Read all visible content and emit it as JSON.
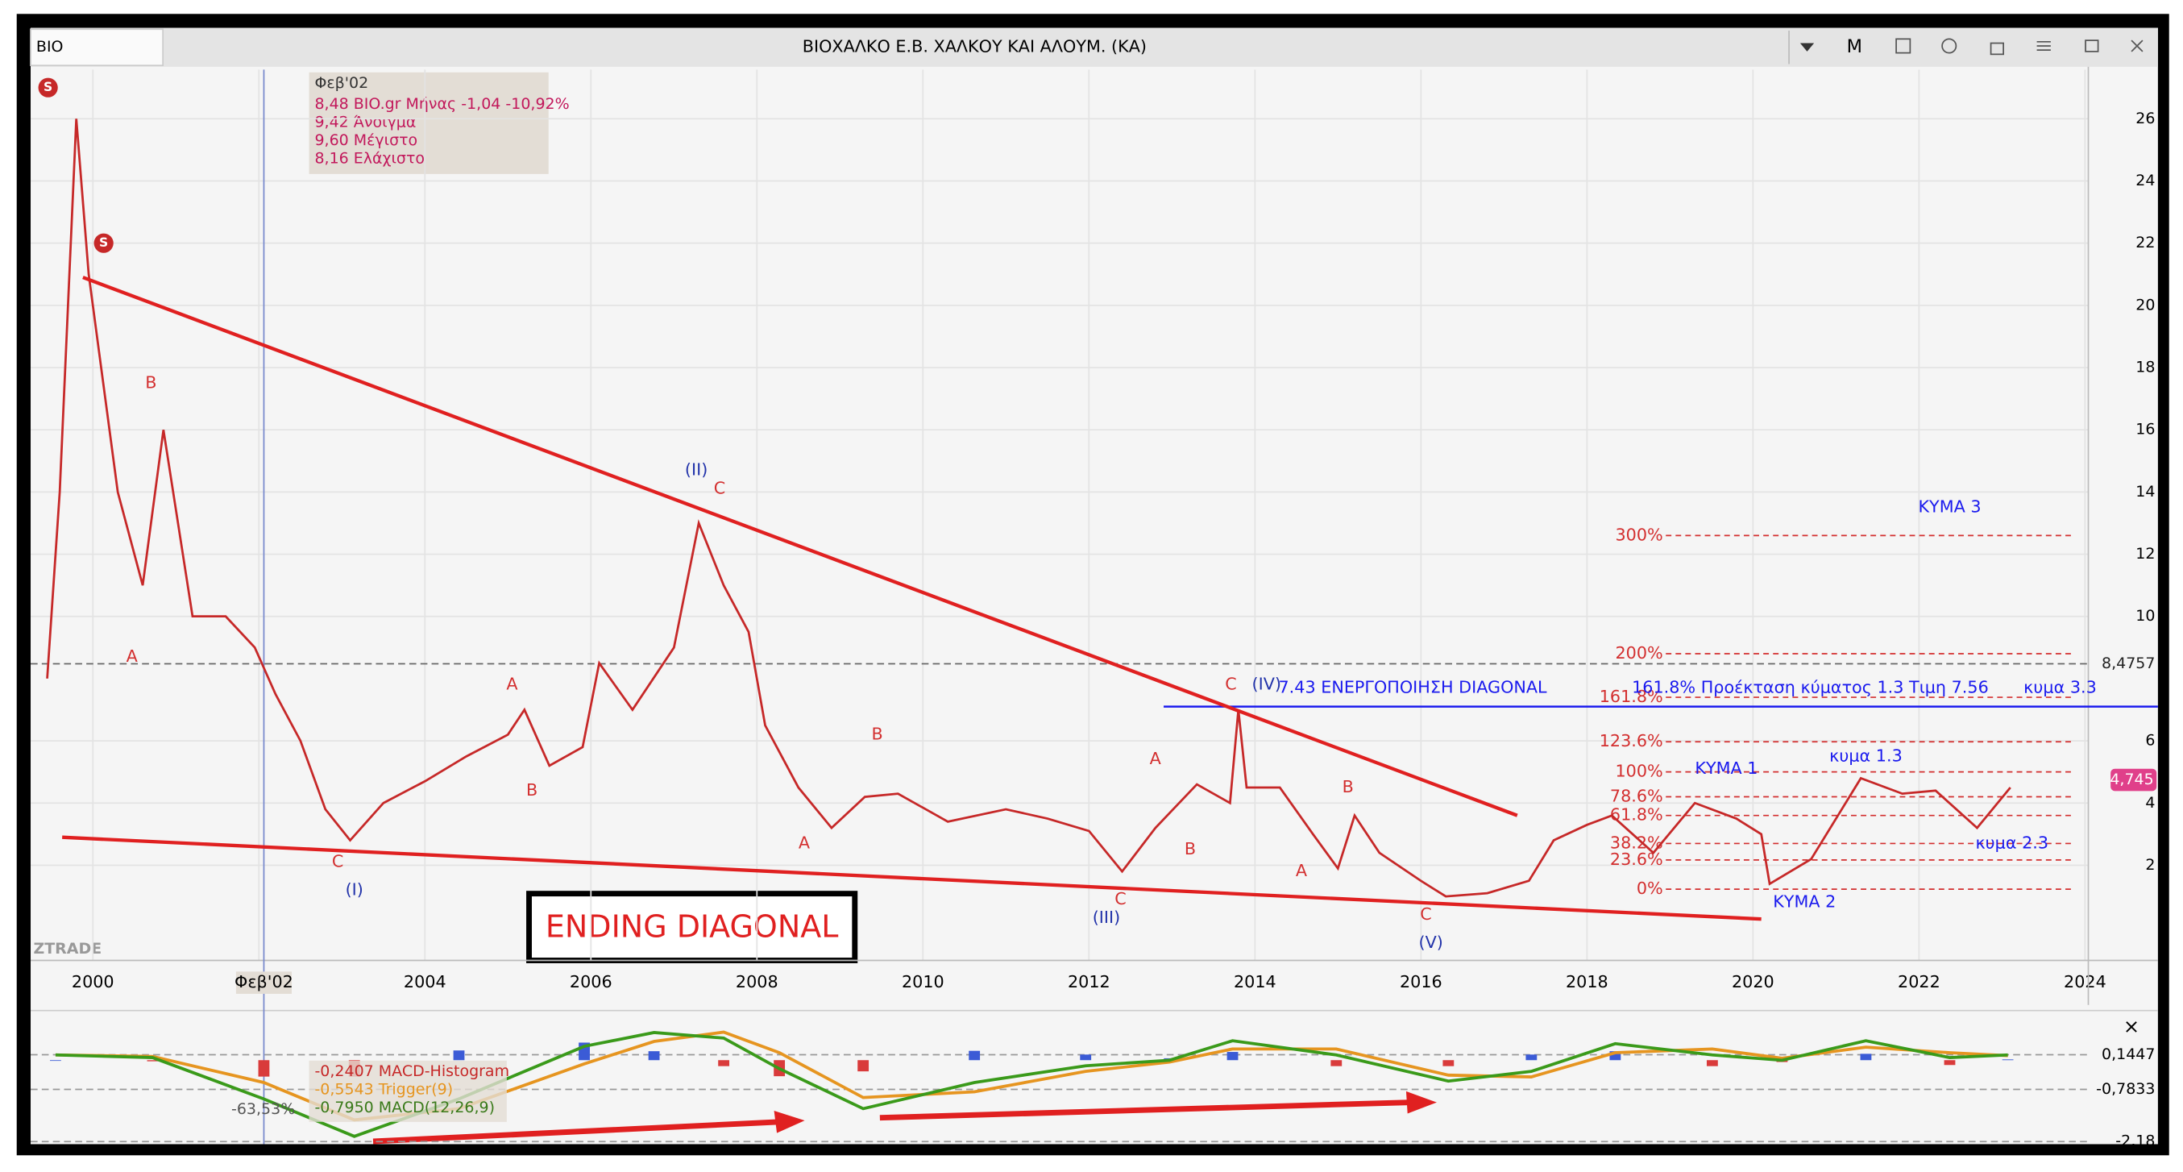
{
  "toolbar": {
    "symbol": "BIO",
    "title": "ΒΙΟΧΑΛΚΟ Ε.Β. ΧΑΛΚΟΥ ΚΑΙ ΑΛΟΥΜ. (ΚΑ)",
    "period_button": "M"
  },
  "info_box": [
    "Φεβ'02",
    "8,48 BIO.gr Μήνας -1,04 -10,92%",
    "9,42 Άνοιγμα",
    "9,60 Μέγιστο",
    "8,16 Ελάχιστο"
  ],
  "watermark": "ZTRADE",
  "box_label": "ENDING DIAGONAL",
  "close_button": "×",
  "chart_data": [
    {
      "type": "line",
      "x": [
        1999.45,
        1999.6,
        1999.8,
        1999.95,
        2000.3,
        2000.6,
        2000.85,
        2001.2,
        2001.6,
        2001.95,
        2002.2,
        2002.5,
        2002.8,
        2003.1,
        2003.5,
        2004,
        2004.5,
        2005,
        2005.2,
        2005.5,
        2005.9,
        2006.1,
        2006.5,
        2007,
        2007.3,
        2007.6,
        2007.9,
        2008.1,
        2008.5,
        2008.9,
        2009.3,
        2009.7,
        2010.3,
        2011,
        2011.5,
        2012,
        2012.4,
        2012.8,
        2013.3,
        2013.7,
        2013.8,
        2013.9,
        2014.3,
        2014.7,
        2015,
        2015.2,
        2015.5,
        2016,
        2016.3,
        2016.8,
        2017.3,
        2017.6,
        2018,
        2018.3,
        2018.8,
        2019.3,
        2019.8,
        2020.1,
        2020.2,
        2020.7,
        2021,
        2021.3,
        2021.8,
        2022.2,
        2022.7,
        2023.1
      ],
      "series": [
        {
          "color": "#c62828",
          "values": [
            8,
            14,
            26,
            21,
            14,
            11,
            16,
            10,
            10,
            9,
            7.5,
            6,
            3.8,
            2.8,
            4,
            4.7,
            5.5,
            6.2,
            7,
            5.2,
            5.8,
            8.5,
            7,
            9,
            13,
            11,
            9.5,
            6.5,
            4.5,
            3.2,
            4.2,
            4.3,
            3.4,
            3.8,
            3.5,
            3.1,
            1.8,
            3.2,
            4.6,
            4,
            7,
            4.5,
            4.5,
            3,
            1.9,
            3.6,
            2.4,
            1.5,
            1,
            1.1,
            1.5,
            2.8,
            3.3,
            3.6,
            2.4,
            4,
            3.5,
            3,
            1.4,
            2.2,
            3.5,
            4.8,
            4.3,
            4.4,
            3.2,
            4.5
          ]
        }
      ],
      "xlim": [
        1999.25,
        2024.04
      ],
      "xticks": [
        2000,
        2002,
        2004,
        2006,
        2008,
        2010,
        2012,
        2014,
        2016,
        2018,
        2020,
        2022,
        2024
      ],
      "ylim": [
        -1.06,
        27.58
      ],
      "yticks": [
        2,
        4,
        6,
        10,
        12,
        14,
        16,
        18,
        20,
        22,
        24,
        26
      ],
      "grid": true,
      "crosshair": {
        "x": 2002.06,
        "label": "Φεβ'02"
      },
      "trendlines": [
        {
          "from": [
            1999.88,
            20.9
          ],
          "to": [
            2017.16,
            3.6
          ],
          "color": "#e02020"
        },
        {
          "from": [
            1999.63,
            2.9
          ],
          "to": [
            2020.1,
            0.27
          ],
          "color": "#e02020"
        }
      ],
      "hline": {
        "value": 7.1,
        "from": 2012.9,
        "color": "#1a1aee"
      },
      "price_tags": [
        {
          "value": 8.4757,
          "label": "8,4757",
          "color": "#666666",
          "dashed_line": true
        },
        {
          "value": 4.745,
          "label": "4,745",
          "color": "#e0408a",
          "dashed_line": false
        }
      ],
      "fib_x": [
        2018.95,
        2023.83
      ],
      "fib_color": "#d32f2f",
      "fib_levels": [
        {
          "label": "300%",
          "value": 12.6
        },
        {
          "label": "200%",
          "value": 8.8
        },
        {
          "label": "161.8%",
          "value": 7.4
        },
        {
          "label": "123.6%",
          "value": 5.97
        },
        {
          "label": "100%",
          "value": 5.0
        },
        {
          "label": "78.6%",
          "value": 4.2
        },
        {
          "label": "61.8%",
          "value": 3.6
        },
        {
          "label": "38.2%",
          "value": 2.7
        },
        {
          "label": "23.6%",
          "value": 2.17
        },
        {
          "label": "0%",
          "value": 1.23
        }
      ],
      "signals": [
        {
          "text": "S",
          "x": 1999.46,
          "y": 27.0
        },
        {
          "text": "S",
          "x": 2000.13,
          "y": 22.0
        }
      ],
      "annotations": [
        {
          "text": "A",
          "x": 2000.47,
          "y": 8.7,
          "color": "#d32f2f"
        },
        {
          "text": "B",
          "x": 2000.7,
          "y": 17.5,
          "color": "#d32f2f"
        },
        {
          "text": "C",
          "x": 2002.95,
          "y": 2.1,
          "color": "#d32f2f"
        },
        {
          "text": "(I)",
          "x": 2003.15,
          "y": 1.2,
          "color": "#2233aa"
        },
        {
          "text": "A",
          "x": 2005.05,
          "y": 7.8,
          "color": "#d32f2f"
        },
        {
          "text": "B",
          "x": 2005.29,
          "y": 4.4,
          "color": "#d32f2f"
        },
        {
          "text": "(II)",
          "x": 2007.27,
          "y": 14.7,
          "color": "#2233aa"
        },
        {
          "text": "C",
          "x": 2007.55,
          "y": 14.1,
          "color": "#d32f2f"
        },
        {
          "text": "A",
          "x": 2008.57,
          "y": 2.7,
          "color": "#d32f2f"
        },
        {
          "text": "B",
          "x": 2009.45,
          "y": 6.2,
          "color": "#d32f2f"
        },
        {
          "text": "C",
          "x": 2012.38,
          "y": 0.9,
          "color": "#d32f2f"
        },
        {
          "text": "(III)",
          "x": 2012.21,
          "y": 0.3,
          "color": "#2233aa"
        },
        {
          "text": "A",
          "x": 2012.8,
          "y": 5.4,
          "color": "#d32f2f"
        },
        {
          "text": "B",
          "x": 2013.22,
          "y": 2.5,
          "color": "#d32f2f"
        },
        {
          "text": "C",
          "x": 2013.71,
          "y": 7.8,
          "color": "#d32f2f"
        },
        {
          "text": "(IV)",
          "x": 2014.14,
          "y": 7.8,
          "color": "#2233aa"
        },
        {
          "text": "A",
          "x": 2014.56,
          "y": 1.8,
          "color": "#d32f2f"
        },
        {
          "text": "B",
          "x": 2015.12,
          "y": 4.5,
          "color": "#d32f2f"
        },
        {
          "text": "C",
          "x": 2016.06,
          "y": 0.4,
          "color": "#d32f2f"
        },
        {
          "text": "(V)",
          "x": 2016.12,
          "y": -0.5,
          "color": "#2233aa"
        },
        {
          "text": "7.43 ΕΝΕΡΓΟΠΟΙΗΣΗ DIAGONAL",
          "x": 2015.9,
          "y": 7.7,
          "color": "#1a1aee"
        },
        {
          "text": "161.8%  Προέκταση κύματος 1.3  Τιμη 7.56",
          "x": 2020.69,
          "y": 7.7,
          "color": "#1a1aee"
        },
        {
          "text": "κυμα 3.3",
          "x": 2023.7,
          "y": 7.7,
          "color": "#1a1aee"
        },
        {
          "text": "ΚΥΜΑ 1",
          "x": 2019.68,
          "y": 5.1,
          "color": "#1a1aee"
        },
        {
          "text": "κυμα 1.3",
          "x": 2021.36,
          "y": 5.5,
          "color": "#1a1aee"
        },
        {
          "text": "κυμα 2.3",
          "x": 2023.12,
          "y": 2.7,
          "color": "#1a1aee"
        },
        {
          "text": "ΚΥΜΑ 2",
          "x": 2020.62,
          "y": 0.8,
          "color": "#1a1aee"
        },
        {
          "text": "ΚΥΜΑ 3",
          "x": 2022.37,
          "y": 13.5,
          "color": "#1a1aee"
        }
      ]
    },
    {
      "type": "line",
      "x": [
        1999.55,
        2000.72,
        2002.06,
        2003.15,
        2004.41,
        2005.92,
        2006.76,
        2007.6,
        2008.27,
        2009.28,
        2010.62,
        2011.96,
        2012.97,
        2013.73,
        2014.98,
        2016.33,
        2017.33,
        2018.34,
        2019.51,
        2020.35,
        2021.36,
        2022.37,
        2023.07
      ],
      "series": [
        {
          "name": "MACD-Histogram",
          "style": "bar",
          "colors": [
            "#3b5bd6",
            "#d93b3b"
          ],
          "values": [
            0,
            -0.03,
            -0.44,
            -0.44,
            0.26,
            0.47,
            0.24,
            -0.16,
            -0.43,
            -0.3,
            0.25,
            0.15,
            0.05,
            0.22,
            -0.16,
            -0.16,
            0.15,
            0.24,
            -0.16,
            -0.05,
            0.17,
            -0.13,
            0.02
          ]
        },
        {
          "name": "Trigger(9)",
          "style": "line",
          "color": "#e69520",
          "values": [
            0.14,
            0.1,
            -0.6,
            -1.6,
            -1.3,
            -0.1,
            0.5,
            0.75,
            0.2,
            -1.0,
            -0.85,
            -0.3,
            -0.05,
            0.3,
            0.3,
            -0.4,
            -0.45,
            0.2,
            0.3,
            0.05,
            0.35,
            0.2,
            0.12
          ]
        },
        {
          "name": "MACD(12,26,9)",
          "style": "line",
          "color": "#3a9a1a",
          "values": [
            0.14,
            0.07,
            -1.04,
            -2.04,
            -1.04,
            0.37,
            0.74,
            0.59,
            -0.23,
            -1.3,
            -0.6,
            -0.15,
            0,
            0.52,
            0.14,
            -0.56,
            -0.3,
            0.44,
            0.14,
            0,
            0.52,
            0.07,
            0.14
          ]
        }
      ],
      "legend": [
        "-0,2407 MACD-Histogram",
        "-0,5543 Trigger(9)",
        "-0,7950 MACD(12,26,9)"
      ],
      "legend_colors": [
        "#c62828",
        "#e69520",
        "#3a7a1a"
      ],
      "note": "-63,53%",
      "xlim": [
        1999.25,
        2024.04
      ],
      "ylim": [
        -2.25,
        1.18
      ],
      "yticks": [
        {
          "value": 0.1447,
          "label": "0,1447"
        },
        {
          "value": -0.7833,
          "label": "-0,7833"
        },
        {
          "value": -2.18,
          "label": "-2,18"
        }
      ]
    }
  ]
}
